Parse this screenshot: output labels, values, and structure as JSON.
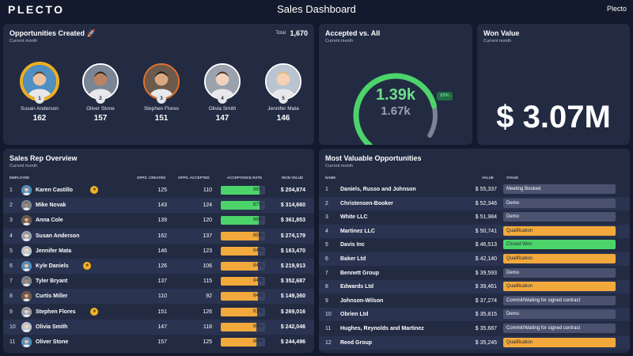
{
  "header": {
    "logo": "PLECTO",
    "title": "Sales Dashboard",
    "brand": "Plecto"
  },
  "opportunities": {
    "title": "Opportunities Created 🚀",
    "subtitle": "Current month",
    "total_label": "Total",
    "total_value": "1,670",
    "people": [
      {
        "name": "Susan Anderson",
        "value": "162",
        "rank": "1"
      },
      {
        "name": "Oliver Stone",
        "value": "157",
        "rank": "2"
      },
      {
        "name": "Stephen Flores",
        "value": "151",
        "rank": "3"
      },
      {
        "name": "Olivia Smith",
        "value": "147",
        "rank": "4"
      },
      {
        "name": "Jennifer Mata",
        "value": "146",
        "rank": "5"
      }
    ]
  },
  "accepted": {
    "title": "Accepted vs. All",
    "subtitle": "Current month",
    "value": "1.39k",
    "total": "1.67k",
    "percent_label": "83%",
    "ratio": 0.83
  },
  "won": {
    "title": "Won Value",
    "subtitle": "Current month",
    "value": "$ 3.07M"
  },
  "reps": {
    "title": "Sales Rep Overview",
    "subtitle": "Current month",
    "columns": [
      "EMPLOYEE",
      "OPPS. CREATED",
      "OPPS. ACCEPTED",
      "ACCEPTANCE RATE",
      "WON VALUE"
    ],
    "rows": [
      {
        "rank": "1",
        "name": "Karen Castillo",
        "created": "125",
        "accepted": "110",
        "rate": "88%",
        "rate_value": 88,
        "won": "$ 204,874",
        "trophy": true
      },
      {
        "rank": "2",
        "name": "Mike Novak",
        "created": "143",
        "accepted": "124",
        "rate": "87%",
        "rate_value": 87,
        "won": "$ 314,660",
        "trophy": false
      },
      {
        "rank": "3",
        "name": "Anna Cole",
        "created": "139",
        "accepted": "120",
        "rate": "86%",
        "rate_value": 86,
        "won": "$ 361,853",
        "trophy": false
      },
      {
        "rank": "4",
        "name": "Susan Anderson",
        "created": "162",
        "accepted": "137",
        "rate": "85%",
        "rate_value": 85,
        "won": "$ 274,179",
        "trophy": false
      },
      {
        "rank": "5",
        "name": "Jennifer Mata",
        "created": "146",
        "accepted": "123",
        "rate": "84%",
        "rate_value": 84,
        "won": "$ 163,470",
        "trophy": false
      },
      {
        "rank": "6",
        "name": "Kyle Daniels",
        "created": "126",
        "accepted": "106",
        "rate": "84%",
        "rate_value": 84,
        "won": "$ 219,913",
        "trophy": true
      },
      {
        "rank": "7",
        "name": "Tyler Bryant",
        "created": "137",
        "accepted": "115",
        "rate": "84%",
        "rate_value": 84,
        "won": "$ 352,687",
        "trophy": false
      },
      {
        "rank": "8",
        "name": "Curtis Miller",
        "created": "110",
        "accepted": "92",
        "rate": "84%",
        "rate_value": 84,
        "won": "$ 149,360",
        "trophy": false
      },
      {
        "rank": "9",
        "name": "Stephen Flores",
        "created": "151",
        "accepted": "126",
        "rate": "83%",
        "rate_value": 83,
        "won": "$ 269,016",
        "trophy": true
      },
      {
        "rank": "10",
        "name": "Olivia Smith",
        "created": "147",
        "accepted": "118",
        "rate": "80%",
        "rate_value": 80,
        "won": "$ 242,046",
        "trophy": false
      },
      {
        "rank": "11",
        "name": "Oliver Stone",
        "created": "157",
        "accepted": "125",
        "rate": "80%",
        "rate_value": 80,
        "won": "$ 244,496",
        "trophy": false
      }
    ]
  },
  "mvo": {
    "title": "Most Valuable Opportunities",
    "subtitle": "Current month",
    "columns": [
      "NAME",
      "VALUE",
      "STAGE"
    ],
    "rows": [
      {
        "rank": "1",
        "name": "Daniels, Russo and Johnson",
        "value": "$ 55,337",
        "stage": "Meeting Booked",
        "stage_color": "#4a5270"
      },
      {
        "rank": "2",
        "name": "Christensen-Booker",
        "value": "$ 52,346",
        "stage": "Demo",
        "stage_color": "#4a5270"
      },
      {
        "rank": "3",
        "name": "White LLC",
        "value": "$ 51,984",
        "stage": "Demo",
        "stage_color": "#4a5270"
      },
      {
        "rank": "4",
        "name": "Martinez LLC",
        "value": "$ 50,741",
        "stage": "Qualification",
        "stage_color": "#f2a93b"
      },
      {
        "rank": "5",
        "name": "Davis Inc",
        "value": "$ 46,513",
        "stage": "Closed Won",
        "stage_color": "#4cd46b"
      },
      {
        "rank": "6",
        "name": "Baker Ltd",
        "value": "$ 42,140",
        "stage": "Qualification",
        "stage_color": "#f2a93b"
      },
      {
        "rank": "7",
        "name": "Bennett Group",
        "value": "$ 39,593",
        "stage": "Demo",
        "stage_color": "#4a5270"
      },
      {
        "rank": "8",
        "name": "Edwards Ltd",
        "value": "$ 39,461",
        "stage": "Qualification",
        "stage_color": "#f2a93b"
      },
      {
        "rank": "9",
        "name": "Johnson-Wilson",
        "value": "$ 37,274",
        "stage": "Commit/Waiting for signed contract",
        "stage_color": "#4a5270"
      },
      {
        "rank": "10",
        "name": "Obrien Ltd",
        "value": "$ 35,815",
        "stage": "Demo",
        "stage_color": "#4a5270"
      },
      {
        "rank": "11",
        "name": "Hughes, Reynolds and Martinez",
        "value": "$ 35,687",
        "stage": "Commit/Waiting for signed contract",
        "stage_color": "#4a5270"
      },
      {
        "rank": "12",
        "name": "Reed Group",
        "value": "$ 35,245",
        "stage": "Qualification",
        "stage_color": "#f2a93b"
      }
    ]
  },
  "colors": {
    "background": "#141a2d",
    "card": "#232b43",
    "green": "#4cd46b",
    "orange": "#f2a93b"
  }
}
